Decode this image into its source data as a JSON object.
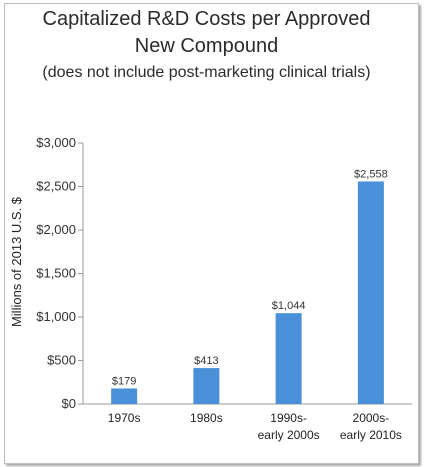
{
  "chart_data": {
    "type": "bar",
    "title": "Capitalized R&D Costs per Approved",
    "title_line2": "New Compound",
    "subtitle": "(does not include post-marketing clinical trials)",
    "ylabel": "Millions of 2013 U.S. $",
    "xlabel": "",
    "categories": [
      [
        "1970s"
      ],
      [
        "1980s"
      ],
      [
        "1990s-",
        "early 2000s"
      ],
      [
        "2000s-",
        "early 2010s"
      ]
    ],
    "values": [
      179,
      413,
      1044,
      2558
    ],
    "data_labels": [
      "$179",
      "$413",
      "$1,044",
      "$2,558"
    ],
    "yticks": [
      0,
      500,
      1000,
      1500,
      2000,
      2500,
      3000
    ],
    "ytick_labels": [
      "$0",
      "$500",
      "$1,000",
      "$1,500",
      "$2,000",
      "$2,500",
      "$3,000"
    ],
    "ylim": [
      0,
      3000
    ],
    "grid": false,
    "legend": "none",
    "bar_color": "#4a90d9",
    "axis_color": "#9a9a9a"
  }
}
